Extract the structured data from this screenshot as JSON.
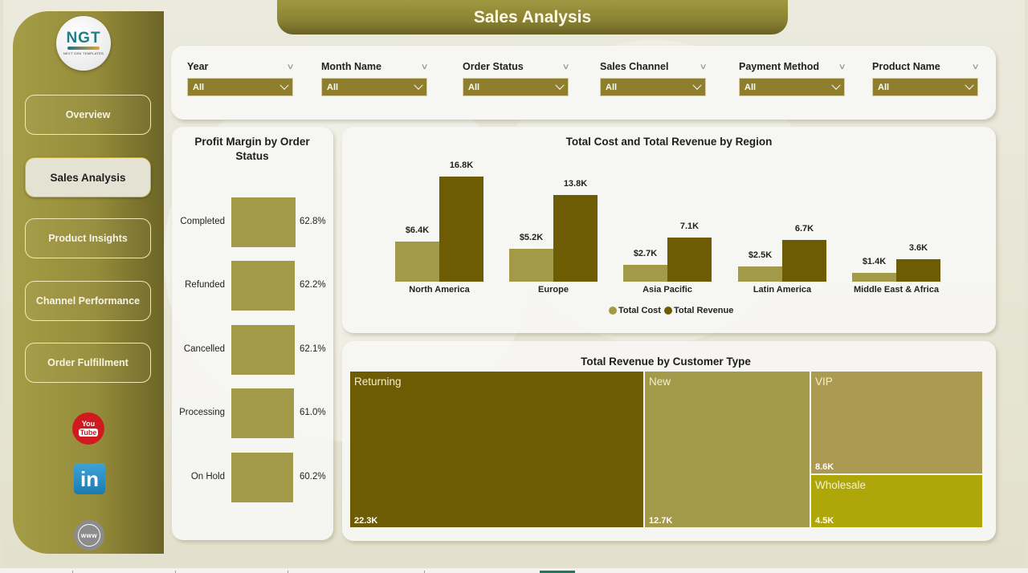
{
  "header": {
    "title": "Sales Analysis"
  },
  "logo": {
    "text": "NGT",
    "subtitle": "NEXT GEN TEMPLATES"
  },
  "sidebar": {
    "items": [
      {
        "label": "Overview",
        "active": false
      },
      {
        "label": "Sales Analysis",
        "active": true
      },
      {
        "label": "Product Insights",
        "active": false
      },
      {
        "label": "Channel Performance",
        "active": false
      },
      {
        "label": "Order Fulfillment",
        "active": false
      }
    ],
    "social": [
      {
        "name": "youtube-icon",
        "line1": "You",
        "line2": "Tube"
      },
      {
        "name": "linkedin-icon",
        "text": "in"
      },
      {
        "name": "website-icon",
        "text": "www"
      }
    ]
  },
  "filters": [
    {
      "label": "Year",
      "value": "All"
    },
    {
      "label": "Month Name",
      "value": "All"
    },
    {
      "label": "Order Status",
      "value": "All"
    },
    {
      "label": "Sales Channel",
      "value": "All"
    },
    {
      "label": "Payment Method",
      "value": "All"
    },
    {
      "label": "Product Name",
      "value": "All"
    }
  ],
  "colors": {
    "accent": "#8f7e2e",
    "cost": "#a29a48",
    "revenue": "#6e5c04",
    "returning": "#6e5c04",
    "new": "#a29a48",
    "vip": "#ab9a52",
    "wholesale": "#afa70a"
  },
  "chart_data": [
    {
      "type": "bar",
      "title": "Profit Margin by Order Status",
      "orientation": "horizontal",
      "categories": [
        "Completed",
        "Refunded",
        "Cancelled",
        "Processing",
        "On Hold"
      ],
      "values": [
        62.8,
        62.2,
        62.1,
        61.0,
        60.2
      ],
      "labels": [
        "62.8%",
        "62.2%",
        "62.1%",
        "61.0%",
        "60.2%"
      ],
      "xlabel": "",
      "ylabel": ""
    },
    {
      "type": "bar",
      "title": "Total Cost and Total Revenue by Region",
      "categories": [
        "North America",
        "Europe",
        "Asia Pacific",
        "Latin America",
        "Middle East & Africa"
      ],
      "series": [
        {
          "name": "Total Cost",
          "values": [
            6400,
            5200,
            2700,
            2500,
            1400
          ],
          "labels": [
            "$6.4K",
            "$5.2K",
            "$2.7K",
            "$2.5K",
            "$1.4K"
          ]
        },
        {
          "name": "Total Revenue",
          "values": [
            16800,
            13800,
            7100,
            6700,
            3600
          ],
          "labels": [
            "16.8K",
            "13.8K",
            "7.1K",
            "6.7K",
            "3.6K"
          ]
        }
      ],
      "legend_position": "bottom",
      "grid": false
    },
    {
      "type": "treemap",
      "title": "Total Revenue by Customer Type",
      "categories": [
        "Returning",
        "New",
        "VIP",
        "Wholesale"
      ],
      "values": [
        22300,
        12700,
        8600,
        4500
      ],
      "labels": [
        "22.3K",
        "12.7K",
        "8.6K",
        "4.5K"
      ]
    }
  ]
}
